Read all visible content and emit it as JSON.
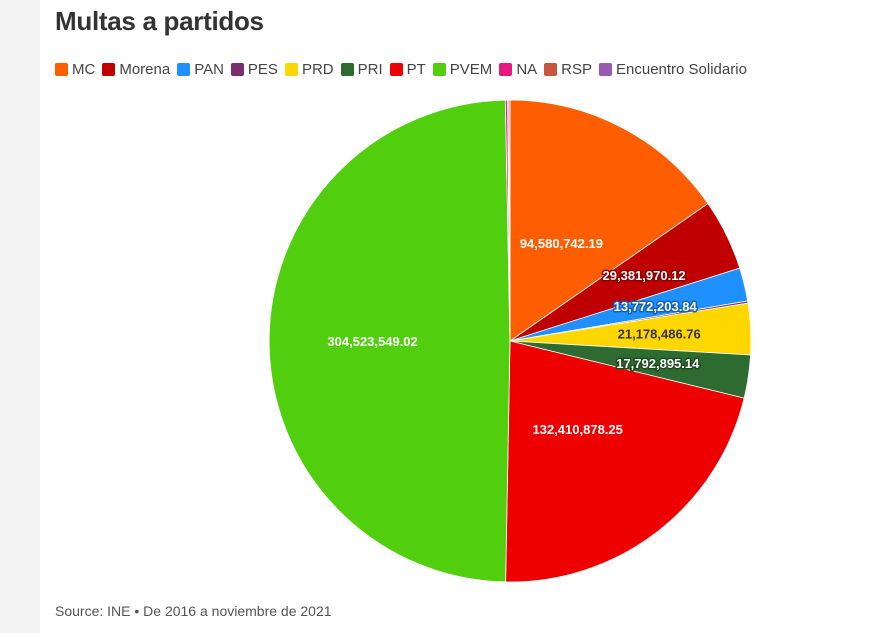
{
  "chart_data": {
    "type": "pie",
    "title": "Multas a partidos",
    "legend_position": "top-left",
    "source": "Source: INE • De 2016 a noviembre de 2021",
    "slices": [
      {
        "name": "MC",
        "value": 94580742.19,
        "label": "94,580,742.19",
        "color": "#ff5e00",
        "label_color": "#ffffff",
        "label_stroke": "none"
      },
      {
        "name": "Morena",
        "value": 29381970.12,
        "label": "29,381,970.12",
        "color": "#c00000",
        "label_color": "#ffffff",
        "label_stroke": "#8a0000"
      },
      {
        "name": "PAN",
        "value": 13772203.84,
        "label": "13,772,203.84",
        "color": "#1e90ff",
        "label_color": "#ffffff",
        "label_stroke": "#1060c0"
      },
      {
        "name": "PES",
        "value": 900000,
        "label": "",
        "color": "#7b2d6e",
        "label_color": "#ffffff",
        "label_stroke": "none"
      },
      {
        "name": "PRD",
        "value": 21178486.76,
        "label": "21,178,486.76",
        "color": "#ffd700",
        "label_color": "#333333",
        "label_stroke": "none"
      },
      {
        "name": "PRI",
        "value": 17792895.14,
        "label": "17,792,895.14",
        "color": "#2e6b30",
        "label_color": "#ffffff",
        "label_stroke": "#1e4a20"
      },
      {
        "name": "PT",
        "value": 132410878.25,
        "label": "132,410,878.25",
        "color": "#ee0000",
        "label_color": "#ffffff",
        "label_stroke": "none"
      },
      {
        "name": "PVEM",
        "value": 304523549.02,
        "label": "304,523,549.02",
        "color": "#51cf0e",
        "label_color": "#ffffff",
        "label_stroke": "none"
      },
      {
        "name": "NA",
        "value": 900000,
        "label": "",
        "color": "#e6197f",
        "label_color": "#ffffff",
        "label_stroke": "none"
      },
      {
        "name": "RSP",
        "value": 500000,
        "label": "",
        "color": "#c8553d",
        "label_color": "#ffffff",
        "label_stroke": "none"
      },
      {
        "name": "Encuentro Solidario",
        "value": 500000,
        "label": "",
        "color": "#9b59b6",
        "label_color": "#ffffff",
        "label_stroke": "none"
      }
    ]
  }
}
